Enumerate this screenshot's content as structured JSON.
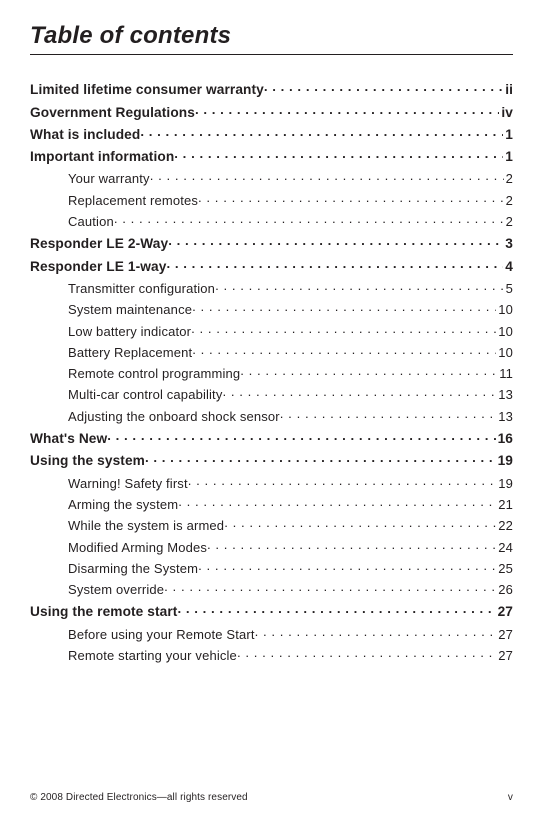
{
  "title": "Table of contents",
  "toc": [
    {
      "level": 0,
      "label": "Limited lifetime consumer warranty",
      "page": "ii"
    },
    {
      "level": 0,
      "label": "Government Regulations",
      "page": "iv"
    },
    {
      "level": 0,
      "label": "What is included",
      "page": "1"
    },
    {
      "level": 0,
      "label": "Important information",
      "page": "1"
    },
    {
      "level": 1,
      "label": "Your warranty",
      "page": "2"
    },
    {
      "level": 1,
      "label": "Replacement remotes",
      "page": "2"
    },
    {
      "level": 1,
      "label": "Caution",
      "page": "2"
    },
    {
      "level": 0,
      "label": "Responder LE 2-Way",
      "page": "3"
    },
    {
      "level": 0,
      "label": "Responder LE 1-way",
      "page": "4"
    },
    {
      "level": 1,
      "label": "Transmitter configuration",
      "page": "5"
    },
    {
      "level": 1,
      "label": "System maintenance ",
      "page": "10"
    },
    {
      "level": 1,
      "label": "Low battery indicator",
      "page": "10"
    },
    {
      "level": 1,
      "label": "Battery Replacement",
      "page": "10"
    },
    {
      "level": 1,
      "label": "Remote control programming",
      "page": "11"
    },
    {
      "level": 1,
      "label": "Multi-car control capability",
      "page": "13"
    },
    {
      "level": 1,
      "label": "Adjusting the onboard shock sensor",
      "page": "13"
    },
    {
      "level": 0,
      "label": "What's New",
      "page": "16"
    },
    {
      "level": 0,
      "label": "Using the system",
      "page": "19"
    },
    {
      "level": 1,
      "label": "Warning! Safety first",
      "page": "19"
    },
    {
      "level": 1,
      "label": "Arming the system",
      "page": "21"
    },
    {
      "level": 1,
      "label": "While the system is armed",
      "page": "22"
    },
    {
      "level": 1,
      "label": "Modified Arming Modes",
      "page": "24"
    },
    {
      "level": 1,
      "label": "Disarming the System",
      "page": "25"
    },
    {
      "level": 1,
      "label": "System override",
      "page": "26"
    },
    {
      "level": 0,
      "label": "Using the remote start",
      "page": "27"
    },
    {
      "level": 1,
      "label": "Before using your Remote Start",
      "page": "27"
    },
    {
      "level": 1,
      "label": "Remote starting your vehicle",
      "page": "27"
    }
  ],
  "footer": {
    "left": "© 2008 Directed Electronics—all rights reserved",
    "right": "v"
  }
}
